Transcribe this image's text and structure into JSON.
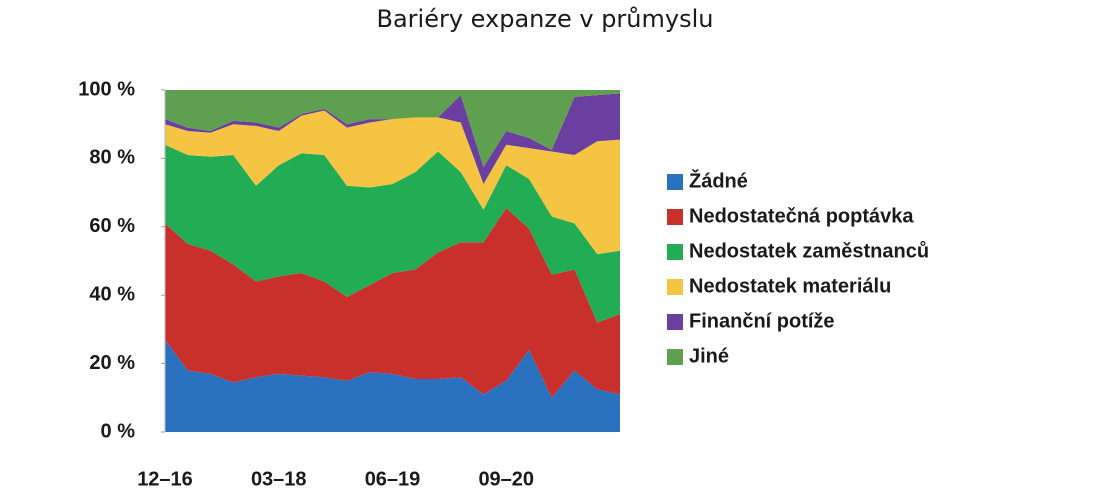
{
  "chart_data": {
    "type": "stacked_area",
    "title": "Bariéry expanze v průmyslu",
    "categories": [
      "12–16",
      null,
      null,
      null,
      null,
      "03–18",
      null,
      null,
      null,
      null,
      "06–19",
      null,
      null,
      null,
      null,
      "09–20",
      null,
      null,
      null,
      null,
      null
    ],
    "series": [
      {
        "name": "Žádné",
        "color": "#2a72c0",
        "values": [
          27,
          18,
          17,
          14.5,
          16,
          17,
          16.5,
          16,
          15,
          17.5,
          17,
          15.5,
          15.5,
          16,
          11,
          15,
          24,
          10,
          18,
          12.5,
          11
        ]
      },
      {
        "name": "Nedostatečná poptávka",
        "color": "#c9302c",
        "values": [
          34,
          37,
          36,
          34.5,
          28,
          28.5,
          30,
          28,
          24.5,
          25.5,
          29.5,
          32,
          37,
          39.5,
          44.5,
          50.5,
          35.5,
          36,
          29.5,
          19.5,
          23.5
        ]
      },
      {
        "name": "Nedostatek zaměstnanců",
        "color": "#22ad55",
        "values": [
          23,
          26,
          27.5,
          32,
          28,
          32.5,
          35,
          37,
          32.5,
          28.5,
          26,
          28.5,
          29.5,
          20.5,
          9.5,
          12.5,
          14.5,
          17,
          13.5,
          20,
          18.5
        ]
      },
      {
        "name": "Nedostatek materiálu",
        "color": "#f6c443",
        "values": [
          6,
          7,
          7,
          9,
          17.5,
          10,
          11,
          13,
          17,
          19,
          19,
          16,
          10,
          14.5,
          7.5,
          6,
          9,
          19,
          20,
          33,
          32.5
        ]
      },
      {
        "name": "Finanční potíže",
        "color": "#6b3fa0",
        "values": [
          1.5,
          1,
          0.5,
          1,
          1,
          1,
          0.5,
          0.5,
          1,
          1,
          0,
          0,
          0,
          8,
          5,
          4,
          3,
          0.5,
          17,
          13.5,
          13.5
        ]
      },
      {
        "name": "Jiné",
        "color": "#5fa050",
        "values": [
          8.5,
          11,
          12,
          9,
          9.5,
          11,
          7,
          5.5,
          10,
          8.5,
          8.5,
          8,
          8,
          1.5,
          22.5,
          12,
          14,
          17.5,
          2,
          1.5,
          1
        ]
      }
    ],
    "ylim": [
      0,
      100
    ],
    "yticks": [
      {
        "value": 0,
        "label": "0 %"
      },
      {
        "value": 20,
        "label": "20 %"
      },
      {
        "value": 40,
        "label": "40 %"
      },
      {
        "value": 60,
        "label": "60 %"
      },
      {
        "value": 80,
        "label": "80 %"
      },
      {
        "value": 100,
        "label": "100 %"
      }
    ],
    "legend": "right"
  }
}
